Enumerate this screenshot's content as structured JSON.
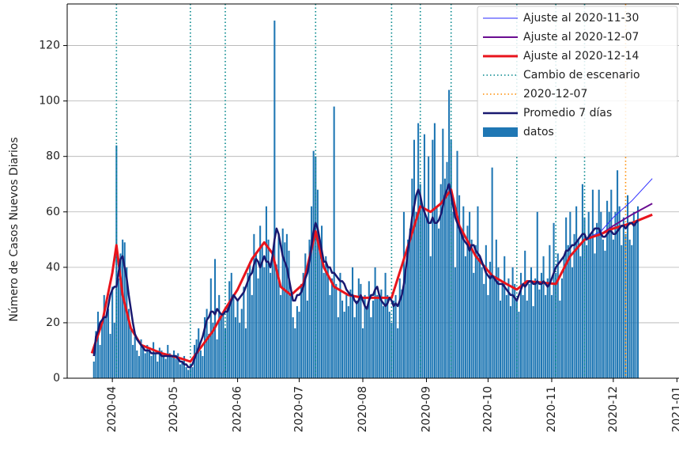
{
  "chart_data": {
    "type": "bar",
    "ylabel": "Número de Casos Nuevos Diarios",
    "xlim": [
      "2020-03-10",
      "2021-01-02"
    ],
    "ylim": [
      0,
      135
    ],
    "yticks": [
      0,
      20,
      40,
      60,
      80,
      100,
      120
    ],
    "xticks": [
      {
        "value": "2020-04-01",
        "label": "2020-04"
      },
      {
        "value": "2020-05-01",
        "label": "2020-05"
      },
      {
        "value": "2020-06-01",
        "label": "2020-06"
      },
      {
        "value": "2020-07-01",
        "label": "2020-07"
      },
      {
        "value": "2020-08-01",
        "label": "2020-08"
      },
      {
        "value": "2020-09-01",
        "label": "2020-09"
      },
      {
        "value": "2020-10-01",
        "label": "2020-10"
      },
      {
        "value": "2020-11-01",
        "label": "2020-11"
      },
      {
        "value": "2020-12-01",
        "label": "2020-12"
      },
      {
        "value": "2021-01-01",
        "label": "2021-01"
      }
    ],
    "grid": true,
    "legend": "upper right",
    "x": [
      "2020-03-23",
      "2020-03-24",
      "2020-03-25",
      "2020-03-26",
      "2020-03-27",
      "2020-03-28",
      "2020-03-29",
      "2020-03-30",
      "2020-03-31",
      "2020-04-01",
      "2020-04-02",
      "2020-04-03",
      "2020-04-04",
      "2020-04-05",
      "2020-04-06",
      "2020-04-07",
      "2020-04-08",
      "2020-04-09",
      "2020-04-10",
      "2020-04-11",
      "2020-04-12",
      "2020-04-13",
      "2020-04-14",
      "2020-04-15",
      "2020-04-16",
      "2020-04-17",
      "2020-04-18",
      "2020-04-19",
      "2020-04-20",
      "2020-04-21",
      "2020-04-22",
      "2020-04-23",
      "2020-04-24",
      "2020-04-25",
      "2020-04-26",
      "2020-04-27",
      "2020-04-28",
      "2020-04-29",
      "2020-04-30",
      "2020-05-01",
      "2020-05-02",
      "2020-05-03",
      "2020-05-04",
      "2020-05-05",
      "2020-05-06",
      "2020-05-07",
      "2020-05-08",
      "2020-05-09",
      "2020-05-10",
      "2020-05-11",
      "2020-05-12",
      "2020-05-13",
      "2020-05-14",
      "2020-05-15",
      "2020-05-16",
      "2020-05-17",
      "2020-05-18",
      "2020-05-19",
      "2020-05-20",
      "2020-05-21",
      "2020-05-22",
      "2020-05-23",
      "2020-05-24",
      "2020-05-25",
      "2020-05-26",
      "2020-05-27",
      "2020-05-28",
      "2020-05-29",
      "2020-05-30",
      "2020-05-31",
      "2020-06-01",
      "2020-06-02",
      "2020-06-03",
      "2020-06-04",
      "2020-06-05",
      "2020-06-06",
      "2020-06-07",
      "2020-06-08",
      "2020-06-09",
      "2020-06-10",
      "2020-06-11",
      "2020-06-12",
      "2020-06-13",
      "2020-06-14",
      "2020-06-15",
      "2020-06-16",
      "2020-06-17",
      "2020-06-18",
      "2020-06-19",
      "2020-06-20",
      "2020-06-21",
      "2020-06-22",
      "2020-06-23",
      "2020-06-24",
      "2020-06-25",
      "2020-06-26",
      "2020-06-27",
      "2020-06-28",
      "2020-06-29",
      "2020-06-30",
      "2020-07-01",
      "2020-07-02",
      "2020-07-03",
      "2020-07-04",
      "2020-07-05",
      "2020-07-06",
      "2020-07-07",
      "2020-07-08",
      "2020-07-09",
      "2020-07-10",
      "2020-07-11",
      "2020-07-12",
      "2020-07-13",
      "2020-07-14",
      "2020-07-15",
      "2020-07-16",
      "2020-07-17",
      "2020-07-18",
      "2020-07-19",
      "2020-07-20",
      "2020-07-21",
      "2020-07-22",
      "2020-07-23",
      "2020-07-24",
      "2020-07-25",
      "2020-07-26",
      "2020-07-27",
      "2020-07-28",
      "2020-07-29",
      "2020-07-30",
      "2020-07-31",
      "2020-08-01",
      "2020-08-02",
      "2020-08-03",
      "2020-08-04",
      "2020-08-05",
      "2020-08-06",
      "2020-08-07",
      "2020-08-08",
      "2020-08-09",
      "2020-08-10",
      "2020-08-11",
      "2020-08-12",
      "2020-08-13",
      "2020-08-14",
      "2020-08-15",
      "2020-08-16",
      "2020-08-17",
      "2020-08-18",
      "2020-08-19",
      "2020-08-20",
      "2020-08-21",
      "2020-08-22",
      "2020-08-23",
      "2020-08-24",
      "2020-08-25",
      "2020-08-26",
      "2020-08-27",
      "2020-08-28",
      "2020-08-29",
      "2020-08-30",
      "2020-08-31",
      "2020-09-01",
      "2020-09-02",
      "2020-09-03",
      "2020-09-04",
      "2020-09-05",
      "2020-09-06",
      "2020-09-07",
      "2020-09-08",
      "2020-09-09",
      "2020-09-10",
      "2020-09-11",
      "2020-09-12",
      "2020-09-13",
      "2020-09-14",
      "2020-09-15",
      "2020-09-16",
      "2020-09-17",
      "2020-09-18",
      "2020-09-19",
      "2020-09-20",
      "2020-09-21",
      "2020-09-22",
      "2020-09-23",
      "2020-09-24",
      "2020-09-25",
      "2020-09-26",
      "2020-09-27",
      "2020-09-28",
      "2020-09-29",
      "2020-09-30",
      "2020-10-01",
      "2020-10-02",
      "2020-10-03",
      "2020-10-04",
      "2020-10-05",
      "2020-10-06",
      "2020-10-07",
      "2020-10-08",
      "2020-10-09",
      "2020-10-10",
      "2020-10-11",
      "2020-10-12",
      "2020-10-13",
      "2020-10-14",
      "2020-10-15",
      "2020-10-16",
      "2020-10-17",
      "2020-10-18",
      "2020-10-19",
      "2020-10-20",
      "2020-10-21",
      "2020-10-22",
      "2020-10-23",
      "2020-10-24",
      "2020-10-25",
      "2020-10-26",
      "2020-10-27",
      "2020-10-28",
      "2020-10-29",
      "2020-10-30",
      "2020-10-31",
      "2020-11-01",
      "2020-11-02",
      "2020-11-03",
      "2020-11-04",
      "2020-11-05",
      "2020-11-06",
      "2020-11-07",
      "2020-11-08",
      "2020-11-09",
      "2020-11-10",
      "2020-11-11",
      "2020-11-12",
      "2020-11-13",
      "2020-11-14",
      "2020-11-15",
      "2020-11-16",
      "2020-11-17",
      "2020-11-18",
      "2020-11-19",
      "2020-11-20",
      "2020-11-21",
      "2020-11-22",
      "2020-11-23",
      "2020-11-24",
      "2020-11-25",
      "2020-11-26",
      "2020-11-27",
      "2020-11-28",
      "2020-11-29",
      "2020-11-30",
      "2020-12-01",
      "2020-12-02",
      "2020-12-03",
      "2020-12-04",
      "2020-12-05",
      "2020-12-06",
      "2020-12-07",
      "2020-12-08",
      "2020-12-09",
      "2020-12-10",
      "2020-12-11",
      "2020-12-12",
      "2020-12-13"
    ],
    "series": [
      {
        "name": "Ajuste al 2020-11-30",
        "kind": "line",
        "color": "#2a2aff",
        "linewidth": 1,
        "x": [
          "2020-11-17",
          "2020-11-25",
          "2020-12-01",
          "2020-12-10",
          "2020-12-20"
        ],
        "values": [
          50,
          53,
          58,
          64,
          72
        ]
      },
      {
        "name": "Ajuste al 2020-12-07",
        "kind": "line",
        "color": "#6a0d91",
        "linewidth": 2,
        "x": [
          "2020-11-17",
          "2020-11-25",
          "2020-12-01",
          "2020-12-10",
          "2020-12-20"
        ],
        "values": [
          50,
          52,
          55,
          59,
          63
        ]
      },
      {
        "name": "Ajuste al 2020-12-14",
        "kind": "line",
        "color": "#e8141c",
        "linewidth": 3,
        "x": [
          "2020-03-22",
          "2020-03-27",
          "2020-04-01",
          "2020-04-03",
          "2020-04-06",
          "2020-04-10",
          "2020-04-15",
          "2020-04-25",
          "2020-05-05",
          "2020-05-09",
          "2020-05-15",
          "2020-05-20",
          "2020-05-26",
          "2020-06-01",
          "2020-06-08",
          "2020-06-14",
          "2020-06-18",
          "2020-06-22",
          "2020-06-27",
          "2020-07-03",
          "2020-07-09",
          "2020-07-13",
          "2020-07-18",
          "2020-07-25",
          "2020-08-01",
          "2020-08-15",
          "2020-08-18",
          "2020-08-24",
          "2020-08-29",
          "2020-09-03",
          "2020-09-08",
          "2020-09-13",
          "2020-09-17",
          "2020-09-25",
          "2020-10-03",
          "2020-10-10",
          "2020-10-15",
          "2020-10-20",
          "2020-10-27",
          "2020-11-03",
          "2020-11-10",
          "2020-11-17",
          "2020-11-25",
          "2020-12-01",
          "2020-12-10",
          "2020-12-20"
        ],
        "values": [
          9,
          20,
          38,
          48,
          30,
          18,
          12,
          9,
          7,
          6,
          12,
          17,
          25,
          32,
          43,
          49,
          45,
          33,
          30,
          34,
          53,
          40,
          33,
          30,
          29,
          29,
          36,
          50,
          62,
          60,
          63,
          68,
          55,
          44,
          37,
          34,
          32,
          35,
          34.5,
          34,
          44,
          50,
          52,
          54,
          56,
          59
        ]
      },
      {
        "name": "Cambio de escenario",
        "kind": "vline",
        "color": "#00868b",
        "x": [
          "2020-04-03",
          "2020-05-09",
          "2020-05-26",
          "2020-07-09",
          "2020-08-15",
          "2020-08-29",
          "2020-09-13",
          "2020-10-15",
          "2020-11-03",
          "2020-11-17"
        ]
      },
      {
        "name": "2020-12-07",
        "kind": "vline",
        "color": "#ff8c00",
        "x": [
          "2020-12-07"
        ]
      },
      {
        "name": "Promedio 7 días",
        "kind": "line",
        "color": "#191970",
        "linewidth": 2.5,
        "values": [
          8,
          15,
          17,
          20,
          21,
          22,
          22,
          26,
          30,
          32,
          33,
          33,
          38,
          43,
          44,
          40,
          36,
          30,
          25,
          20,
          16,
          14,
          13,
          12,
          11,
          10,
          10,
          10,
          9,
          9,
          9,
          9,
          9,
          8,
          8,
          8,
          8,
          8,
          8,
          8,
          8,
          7,
          6,
          6,
          5,
          5,
          4,
          4,
          5,
          7,
          9,
          11,
          13,
          15,
          18,
          21,
          22,
          24,
          24,
          23,
          25,
          24,
          23,
          23,
          24,
          24,
          26,
          28,
          30,
          29,
          28,
          29,
          30,
          31,
          33,
          35,
          37,
          38,
          41,
          43,
          42,
          40,
          42,
          44,
          42,
          42,
          40,
          44,
          50,
          54,
          52,
          48,
          44,
          42,
          40,
          36,
          32,
          28,
          28,
          30,
          30,
          31,
          33,
          36,
          38,
          42,
          48,
          53,
          56,
          54,
          50,
          46,
          42,
          42,
          40,
          40,
          38,
          38,
          37,
          36,
          35,
          35,
          34,
          32,
          31,
          30,
          30,
          28,
          27,
          28,
          30,
          28,
          26,
          25,
          28,
          30,
          30,
          32,
          33,
          30,
          28,
          27,
          26,
          27,
          29,
          28,
          26,
          27,
          26,
          28,
          30,
          34,
          40,
          46,
          52,
          58,
          62,
          66,
          68,
          66,
          62,
          60,
          58,
          56,
          56,
          58,
          56,
          56,
          57,
          59,
          62,
          66,
          68,
          70,
          66,
          62,
          58,
          56,
          54,
          52,
          50,
          49,
          48,
          46,
          48,
          48,
          46,
          45,
          44,
          42,
          40,
          38,
          37,
          36,
          37,
          36,
          35,
          34,
          34,
          34,
          33,
          32,
          31,
          30,
          30,
          29,
          28,
          30,
          32,
          34,
          33,
          34,
          35,
          35,
          34,
          34,
          35,
          34,
          34,
          35,
          34,
          33,
          34,
          36,
          38,
          40,
          41,
          42,
          43,
          44,
          46,
          46,
          47,
          48,
          48,
          49,
          50,
          51,
          52,
          52,
          50,
          51,
          52,
          53,
          54,
          54,
          54,
          52,
          51,
          51,
          52,
          53,
          53,
          52,
          52,
          53,
          54,
          55,
          55,
          54,
          55,
          56,
          56,
          55,
          56,
          57
        ]
      },
      {
        "name": "datos",
        "kind": "bar",
        "color": "#1f77b4",
        "values": [
          6,
          17,
          24,
          12,
          21,
          30,
          22,
          25,
          16,
          33,
          20,
          84,
          36,
          45,
          50,
          49,
          40,
          25,
          18,
          12,
          15,
          10,
          8,
          14,
          11,
          9,
          12,
          10,
          8,
          13,
          9,
          6,
          11,
          10,
          8,
          7,
          12,
          9,
          8,
          10,
          7,
          9,
          5,
          6,
          8,
          4,
          3,
          5,
          4,
          12,
          14,
          18,
          10,
          8,
          22,
          25,
          16,
          36,
          20,
          43,
          14,
          30,
          22,
          24,
          18,
          26,
          35,
          38,
          30,
          22,
          28,
          20,
          25,
          33,
          18,
          38,
          42,
          30,
          52,
          45,
          36,
          55,
          48,
          40,
          62,
          50,
          38,
          44,
          129,
          41,
          52,
          30,
          54,
          49,
          52,
          46,
          30,
          22,
          18,
          26,
          24,
          34,
          38,
          45,
          28,
          50,
          62,
          82,
          80,
          68,
          46,
          55,
          38,
          44,
          40,
          30,
          36,
          98,
          34,
          22,
          38,
          28,
          24,
          30,
          26,
          32,
          40,
          22,
          28,
          36,
          34,
          18,
          30,
          26,
          35,
          22,
          28,
          40,
          30,
          30,
          32,
          26,
          38,
          30,
          24,
          20,
          28,
          30,
          18,
          36,
          32,
          60,
          40,
          50,
          54,
          72,
          86,
          60,
          92,
          70,
          62,
          88,
          58,
          80,
          44,
          86,
          92,
          62,
          54,
          70,
          90,
          72,
          78,
          104,
          86,
          60,
          40,
          82,
          66,
          52,
          62,
          44,
          55,
          60,
          50,
          38,
          48,
          62,
          44,
          40,
          34,
          48,
          30,
          42,
          76,
          36,
          50,
          40,
          28,
          34,
          44,
          30,
          36,
          26,
          40,
          34,
          28,
          24,
          38,
          30,
          46,
          28,
          34,
          40,
          26,
          36,
          60,
          32,
          38,
          44,
          30,
          36,
          48,
          30,
          56,
          38,
          45,
          28,
          36,
          44,
          58,
          48,
          60,
          40,
          52,
          62,
          50,
          44,
          70,
          58,
          48,
          60,
          52,
          68,
          45,
          56,
          68,
          60,
          50,
          46,
          64,
          60,
          68,
          50,
          60,
          75,
          62,
          48,
          58,
          52,
          66,
          50,
          48,
          60,
          56,
          62
        ]
      }
    ]
  }
}
